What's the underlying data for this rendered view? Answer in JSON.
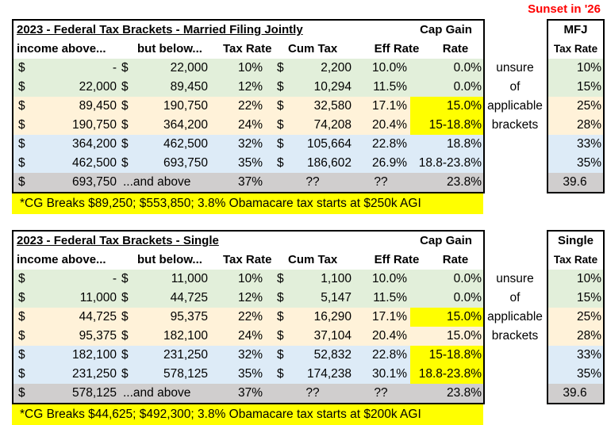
{
  "sunset_label": "Sunset in '26",
  "colors": {
    "green": "#e2efda",
    "orange": "#fff2d9",
    "blue": "#ddebf7",
    "gray": "#d0cece",
    "highlight": "#ffff00",
    "sunset": "#ff0000"
  },
  "side_notes": [
    "unsure",
    "of",
    "applicable",
    "brackets"
  ],
  "tables": [
    {
      "title": "2023 - Federal Tax Brackets - Married Filing Jointly",
      "cap_gain_header_1": "Cap Gain",
      "headers": {
        "income_above": "income above...",
        "but_below": "but below...",
        "tax_rate": "Tax Rate",
        "cum_tax": "Cum Tax",
        "eff_rate": "Eff Rate",
        "cg_rate": "Rate"
      },
      "rows": [
        {
          "d1": "$",
          "income": "-",
          "d2": "$",
          "below": "22,000",
          "tax_rate": "10%",
          "d3": "$",
          "cum_tax": "2,200",
          "eff_rate": "10.0%",
          "cg_rate": "0.0%",
          "cg_highlight": false,
          "band": "green"
        },
        {
          "d1": "$",
          "income": "22,000",
          "d2": "$",
          "below": "89,450",
          "tax_rate": "12%",
          "d3": "$",
          "cum_tax": "10,294",
          "eff_rate": "11.5%",
          "cg_rate": "0.0%",
          "cg_highlight": false,
          "band": "green"
        },
        {
          "d1": "$",
          "income": "89,450",
          "d2": "$",
          "below": "190,750",
          "tax_rate": "22%",
          "d3": "$",
          "cum_tax": "32,580",
          "eff_rate": "17.1%",
          "cg_rate": "15.0%",
          "cg_highlight": true,
          "band": "orange"
        },
        {
          "d1": "$",
          "income": "190,750",
          "d2": "$",
          "below": "364,200",
          "tax_rate": "24%",
          "d3": "$",
          "cum_tax": "74,208",
          "eff_rate": "20.4%",
          "cg_rate": "15-18.8%",
          "cg_highlight": true,
          "band": "orange"
        },
        {
          "d1": "$",
          "income": "364,200",
          "d2": "$",
          "below": "462,500",
          "tax_rate": "32%",
          "d3": "$",
          "cum_tax": "105,664",
          "eff_rate": "22.8%",
          "cg_rate": "18.8%",
          "cg_highlight": false,
          "band": "blue"
        },
        {
          "d1": "$",
          "income": "462,500",
          "d2": "$",
          "below": "693,750",
          "tax_rate": "35%",
          "d3": "$",
          "cum_tax": "186,602",
          "eff_rate": "26.9%",
          "cg_rate": "18.8-23.8%",
          "cg_highlight": false,
          "band": "blue"
        },
        {
          "d1": "$",
          "income": "693,750",
          "d2": "",
          "below": "...and above",
          "tax_rate": "37%",
          "d3": "",
          "cum_tax": "??",
          "eff_rate": "??",
          "cg_rate": "23.8%",
          "cg_highlight": false,
          "band": "gray"
        }
      ],
      "footnote": "*CG Breaks $89,250; $553,850; 3.8% Obamacare tax starts at $250k AGI",
      "sunset": {
        "header_1": "MFJ",
        "header_2": "Tax Rate",
        "rates": [
          "10%",
          "15%",
          "25%",
          "28%",
          "33%",
          "35%",
          "39.6"
        ]
      }
    },
    {
      "title": "2023 - Federal Tax Brackets - Single",
      "cap_gain_header_1": "Cap Gain",
      "headers": {
        "income_above": "income above...",
        "but_below": "but below...",
        "tax_rate": "Tax Rate",
        "cum_tax": "Cum Tax",
        "eff_rate": "Eff Rate",
        "cg_rate": "Rate"
      },
      "rows": [
        {
          "d1": "$",
          "income": "-",
          "d2": "$",
          "below": "11,000",
          "tax_rate": "10%",
          "d3": "$",
          "cum_tax": "1,100",
          "eff_rate": "10.0%",
          "cg_rate": "0.0%",
          "cg_highlight": false,
          "band": "green"
        },
        {
          "d1": "$",
          "income": "11,000",
          "d2": "$",
          "below": "44,725",
          "tax_rate": "12%",
          "d3": "$",
          "cum_tax": "5,147",
          "eff_rate": "11.5%",
          "cg_rate": "0.0%",
          "cg_highlight": false,
          "band": "green"
        },
        {
          "d1": "$",
          "income": "44,725",
          "d2": "$",
          "below": "95,375",
          "tax_rate": "22%",
          "d3": "$",
          "cum_tax": "16,290",
          "eff_rate": "17.1%",
          "cg_rate": "15.0%",
          "cg_highlight": true,
          "band": "orange"
        },
        {
          "d1": "$",
          "income": "95,375",
          "d2": "$",
          "below": "182,100",
          "tax_rate": "24%",
          "d3": "$",
          "cum_tax": "37,104",
          "eff_rate": "20.4%",
          "cg_rate": "15.0%",
          "cg_highlight": false,
          "band": "orange"
        },
        {
          "d1": "$",
          "income": "182,100",
          "d2": "$",
          "below": "231,250",
          "tax_rate": "32%",
          "d3": "$",
          "cum_tax": "52,832",
          "eff_rate": "22.8%",
          "cg_rate": "15-18.8%",
          "cg_highlight": true,
          "band": "blue"
        },
        {
          "d1": "$",
          "income": "231,250",
          "d2": "$",
          "below": "578,125",
          "tax_rate": "35%",
          "d3": "$",
          "cum_tax": "174,238",
          "eff_rate": "30.1%",
          "cg_rate": "18.8-23.8%",
          "cg_highlight": true,
          "band": "blue"
        },
        {
          "d1": "$",
          "income": "578,125",
          "d2": "",
          "below": "...and above",
          "tax_rate": "37%",
          "d3": "",
          "cum_tax": "??",
          "eff_rate": "??",
          "cg_rate": "23.8%",
          "cg_highlight": false,
          "band": "gray"
        }
      ],
      "footnote": "*CG Breaks $44,625; $492,300; 3.8% Obamacare tax starts at $200k AGI",
      "sunset": {
        "header_1": "Single",
        "header_2": "Tax Rate",
        "rates": [
          "10%",
          "15%",
          "25%",
          "28%",
          "33%",
          "35%",
          "39.6"
        ]
      }
    }
  ]
}
